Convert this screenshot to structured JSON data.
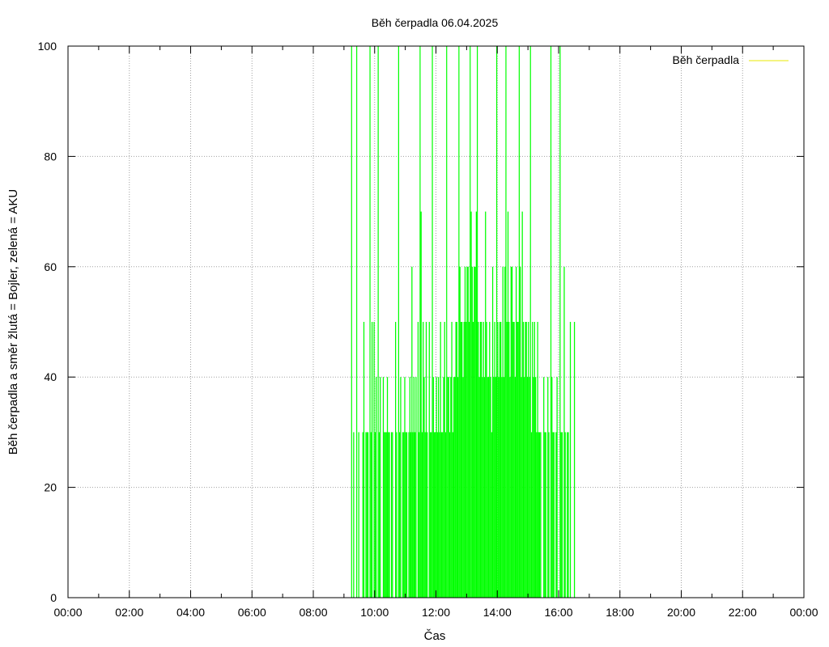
{
  "chart_data": {
    "type": "bar",
    "title": "Běh čerpadla 06.04.2025",
    "xlabel": "Čas",
    "ylabel": "Běh čerpadla a směr žlutá = Bojler, zelená = AKU",
    "x_ticks": [
      "00:00",
      "02:00",
      "04:00",
      "06:00",
      "08:00",
      "10:00",
      "12:00",
      "14:00",
      "16:00",
      "18:00",
      "20:00",
      "22:00",
      "00:00"
    ],
    "xlim_hours": [
      0,
      24
    ],
    "y_ticks": [
      "0",
      "20",
      "40",
      "60",
      "80",
      "100"
    ],
    "ylim": [
      0,
      100
    ],
    "grid": true,
    "legend": {
      "position": "top-right",
      "label": "Běh čerpadla",
      "color": "#e8e800"
    },
    "series_color": "#00ff00",
    "sample_interval_minutes": 2,
    "series": [
      {
        "x_start": "09:14",
        "values": [
          100,
          0,
          30,
          0,
          0,
          100,
          0,
          30,
          0,
          0,
          0,
          30,
          50,
          0,
          30,
          30,
          30,
          0,
          100,
          30,
          50,
          0,
          50,
          30,
          40,
          0,
          100,
          30,
          40,
          0,
          0,
          40,
          30,
          30,
          30,
          40,
          30,
          30,
          0,
          30,
          30,
          0,
          0,
          50,
          30,
          0,
          100,
          30,
          40,
          0,
          30,
          30,
          40,
          30,
          30,
          0,
          30,
          40,
          30,
          60,
          30,
          40,
          30,
          40,
          0,
          50,
          30,
          100,
          70,
          30,
          50,
          40,
          30,
          50,
          30,
          0,
          50,
          30,
          30,
          100,
          40,
          30,
          30,
          40,
          30,
          40,
          30,
          50,
          30,
          30,
          40,
          50,
          30,
          100,
          40,
          40,
          30,
          40,
          50,
          30,
          40,
          40,
          50,
          50,
          40,
          100,
          60,
          50,
          50,
          40,
          50,
          60,
          50,
          60,
          60,
          50,
          100,
          70,
          60,
          50,
          60,
          60,
          70,
          100,
          50,
          40,
          50,
          50,
          40,
          50,
          40,
          70,
          50,
          40,
          40,
          50,
          40,
          30,
          60,
          40,
          50,
          40,
          100,
          50,
          40,
          50,
          50,
          40,
          60,
          40,
          60,
          100,
          50,
          70,
          50,
          40,
          60,
          60,
          50,
          50,
          40,
          60,
          50,
          50,
          100,
          60,
          40,
          70,
          50,
          40,
          50,
          50,
          40,
          50,
          40,
          100,
          30,
          50,
          40,
          50,
          40,
          30,
          50,
          30,
          30,
          30,
          0,
          0,
          40,
          30,
          30,
          0,
          40,
          30,
          0,
          100,
          40,
          30,
          30,
          0,
          30,
          40,
          0,
          0,
          100,
          30,
          30,
          0,
          60,
          30,
          0,
          30,
          30,
          0,
          50,
          0,
          0,
          0,
          50
        ]
      }
    ]
  }
}
